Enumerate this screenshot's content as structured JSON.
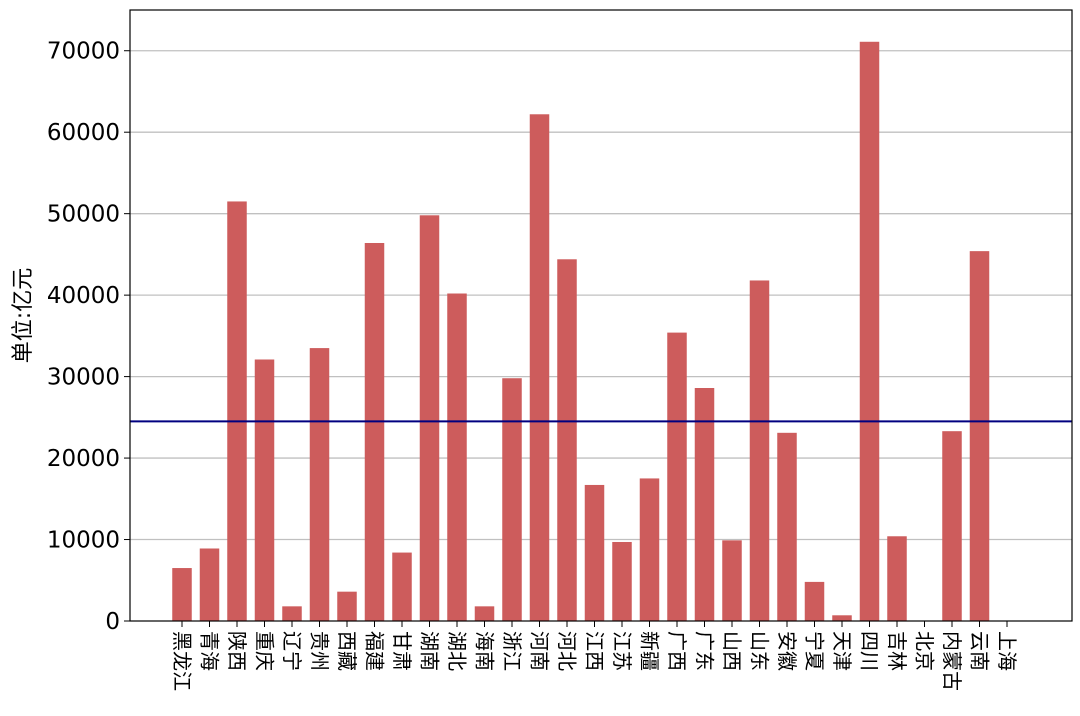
{
  "chart_data": {
    "type": "bar",
    "title": "",
    "xlabel": "",
    "ylabel": "单位:亿元",
    "ylim": [
      0,
      75000
    ],
    "yticks": [
      0,
      10000,
      20000,
      30000,
      40000,
      50000,
      60000,
      70000
    ],
    "grid": "horizontal",
    "bar_color": "#cd5c5c",
    "reference_line": {
      "value": 24500,
      "color": "#000080"
    },
    "categories": [
      "黑龙江",
      "青海",
      "陕西",
      "重庆",
      "辽宁",
      "贵州",
      "西藏",
      "福建",
      "甘肃",
      "湖南",
      "湖北",
      "海南",
      "浙江",
      "河南",
      "河北",
      "江西",
      "江苏",
      "新疆",
      "广西",
      "广东",
      "山西",
      "山东",
      "安徽",
      "宁夏",
      "天津",
      "四川",
      "吉林",
      "北京",
      "内蒙古",
      "云南",
      "上海"
    ],
    "values": [
      6500,
      8900,
      51500,
      32100,
      1800,
      33500,
      3600,
      46400,
      8400,
      49800,
      40200,
      1800,
      29800,
      62200,
      44400,
      16700,
      9700,
      17500,
      35400,
      28600,
      9900,
      41800,
      23100,
      4800,
      700,
      71100,
      10400,
      0,
      23300,
      45400,
      0
    ]
  }
}
